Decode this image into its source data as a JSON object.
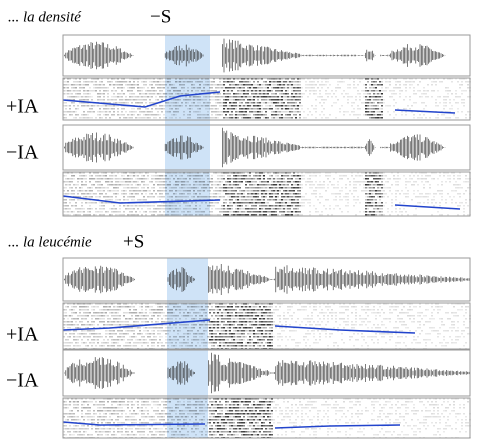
{
  "panels": [
    {
      "phrase": "... la densité",
      "condition": "−S",
      "rows": [
        "+IA",
        "−IA"
      ]
    },
    {
      "phrase": "... la leucémie",
      "condition": "+S",
      "rows": [
        "+IA",
        "−IA"
      ]
    }
  ]
}
